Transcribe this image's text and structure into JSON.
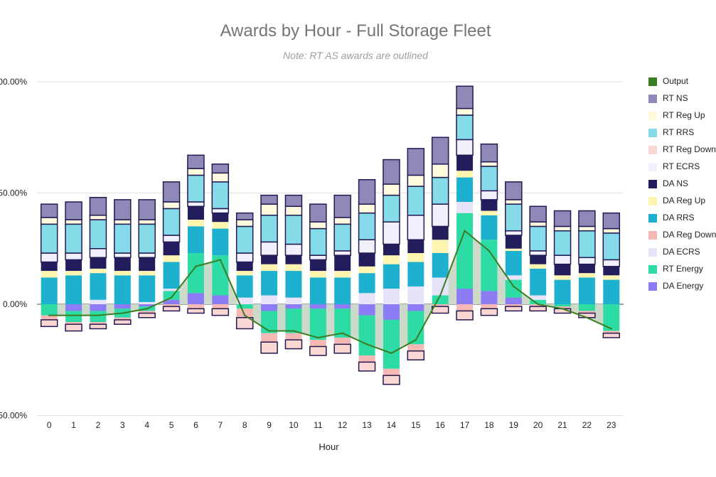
{
  "chart_data": {
    "type": "bar",
    "stacked": true,
    "title": "Awards by Hour - Full Storage Fleet",
    "subtitle": "Note: RT AS awards are outlined",
    "xlabel": "Hour",
    "ylabel": "",
    "ylim": [
      -50,
      100
    ],
    "yticks": [
      -50,
      0,
      50,
      100
    ],
    "ytick_labels": [
      "-50.00%",
      "0.00%",
      "50.00%",
      "100.00%"
    ],
    "grid": true,
    "legend_position": "right",
    "categories": [
      "0",
      "1",
      "2",
      "3",
      "4",
      "5",
      "6",
      "7",
      "8",
      "9",
      "10",
      "11",
      "12",
      "13",
      "14",
      "15",
      "16",
      "17",
      "18",
      "19",
      "20",
      "21",
      "22",
      "23"
    ],
    "series": [
      {
        "name": "DA Energy",
        "color": "#8B7CF6",
        "outlined": false,
        "values": [
          0,
          -3,
          -3,
          -2,
          -1,
          2,
          5,
          4,
          0,
          -3,
          -2,
          -2,
          -2,
          -5,
          -7,
          -3,
          0,
          7,
          6,
          3,
          0,
          0,
          0,
          0
        ]
      },
      {
        "name": "RT Energy",
        "color": "#2DDCA4",
        "outlined": false,
        "values": [
          -5,
          -5,
          -5,
          -4,
          -2,
          4,
          18,
          18,
          -2,
          -10,
          -11,
          -14,
          -13,
          -18,
          -22,
          -15,
          4,
          34,
          23,
          8,
          2,
          -1,
          -3,
          -12
        ]
      },
      {
        "name": "DA ECRS",
        "color": "#E6E3FA",
        "outlined": false,
        "values": [
          0,
          0,
          2,
          0,
          1,
          1,
          0,
          0,
          3,
          4,
          3,
          0,
          0,
          5,
          7,
          8,
          8,
          5,
          0,
          2,
          2,
          0,
          0,
          0
        ]
      },
      {
        "name": "DA Reg Down",
        "color": "#F6B8B4",
        "outlined": false,
        "values": [
          -2,
          -1,
          -1,
          -1,
          -1,
          -1,
          -2,
          -2,
          -4,
          -4,
          -3,
          -3,
          -3,
          -3,
          -3,
          -3,
          -1,
          -3,
          -2,
          -1,
          -1,
          -1,
          -1,
          -1
        ]
      },
      {
        "name": "DA RRS",
        "color": "#1DB1CF",
        "outlined": false,
        "values": [
          12,
          13,
          12,
          13,
          12,
          12,
          12,
          12,
          10,
          11,
          12,
          12,
          12,
          9,
          11,
          11,
          11,
          11,
          11,
          11,
          12,
          11,
          12,
          11
        ]
      },
      {
        "name": "DA Reg Up",
        "color": "#FFF4B0",
        "outlined": false,
        "values": [
          3,
          2,
          2,
          2,
          2,
          3,
          3,
          3,
          2,
          3,
          3,
          3,
          3,
          3,
          4,
          4,
          6,
          3,
          2,
          1,
          2,
          2,
          2,
          2
        ]
      },
      {
        "name": "DA NS",
        "color": "#221E5E",
        "outlined": false,
        "values": [
          4,
          5,
          5,
          6,
          6,
          6,
          6,
          4,
          4,
          4,
          4,
          5,
          7,
          6,
          5,
          6,
          6,
          7,
          5,
          6,
          4,
          5,
          4,
          4
        ]
      },
      {
        "name": "RT ECRS",
        "color": "#F1F0FE",
        "outlined": true,
        "values": [
          4,
          3,
          4,
          2,
          2,
          3,
          2,
          2,
          4,
          6,
          5,
          2,
          2,
          6,
          10,
          11,
          10,
          7,
          4,
          2,
          2,
          4,
          3,
          3
        ]
      },
      {
        "name": "RT Reg Down",
        "color": "#FBD7D3",
        "outlined": true,
        "values": [
          -3,
          -3,
          -2,
          -2,
          -2,
          -2,
          -2,
          -3,
          -5,
          -5,
          -4,
          -4,
          -4,
          -4,
          -4,
          -4,
          -3,
          -4,
          -3,
          -2,
          -2,
          -2,
          -2,
          -2
        ]
      },
      {
        "name": "RT RRS",
        "color": "#85DCE8",
        "outlined": true,
        "values": [
          13,
          13,
          13,
          13,
          13,
          12,
          12,
          12,
          12,
          12,
          13,
          12,
          12,
          12,
          12,
          13,
          12,
          11,
          11,
          12,
          11,
          11,
          12,
          12
        ]
      },
      {
        "name": "RT Reg Up",
        "color": "#FFF9DD",
        "outlined": true,
        "values": [
          3,
          2,
          2,
          2,
          2,
          3,
          3,
          4,
          3,
          5,
          4,
          3,
          3,
          4,
          5,
          5,
          6,
          3,
          2,
          2,
          2,
          2,
          2,
          2
        ]
      },
      {
        "name": "RT NS",
        "color": "#8F89B8",
        "outlined": true,
        "values": [
          6,
          8,
          8,
          9,
          9,
          9,
          6,
          4,
          3,
          4,
          5,
          8,
          10,
          11,
          11,
          12,
          12,
          10,
          8,
          8,
          7,
          7,
          7,
          7
        ]
      },
      {
        "name": "Output",
        "color": "#3A7D22",
        "type": "line",
        "values": [
          -5,
          -5,
          -5,
          -4,
          -2,
          3,
          17,
          20,
          -5,
          -12,
          -12,
          -15,
          -13,
          -18,
          -22,
          -16,
          4,
          33,
          24,
          8,
          0,
          -2,
          -6,
          -11
        ]
      }
    ]
  },
  "legend": {
    "items": [
      {
        "label": "Output",
        "color": "#3A7D22",
        "outlined": false
      },
      {
        "label": "RT NS",
        "color": "#8F89B8",
        "outlined": false
      },
      {
        "label": "RT Reg Up",
        "color": "#FFF9DD",
        "outlined": false
      },
      {
        "label": "RT RRS",
        "color": "#85DCE8",
        "outlined": false
      },
      {
        "label": "RT Reg Down",
        "color": "#FBD7D3",
        "outlined": false
      },
      {
        "label": "RT ECRS",
        "color": "#F1F0FE",
        "outlined": false
      },
      {
        "label": "DA NS",
        "color": "#221E5E",
        "outlined": false
      },
      {
        "label": "DA Reg Up",
        "color": "#FFF4B0",
        "outlined": false
      },
      {
        "label": "DA RRS",
        "color": "#1DB1CF",
        "outlined": false
      },
      {
        "label": "DA Reg Down",
        "color": "#F6B8B4",
        "outlined": false
      },
      {
        "label": "DA ECRS",
        "color": "#E6E3FA",
        "outlined": false
      },
      {
        "label": "RT Energy",
        "color": "#2DDCA4",
        "outlined": false
      },
      {
        "label": "DA Energy",
        "color": "#8B7CF6",
        "outlined": false
      }
    ]
  },
  "colors": {
    "outline": "#231A52",
    "output_fill": "#CDD9C9",
    "gridline": "#E0E0E0",
    "zero_line": "#444444",
    "tick_text": "#222222"
  }
}
